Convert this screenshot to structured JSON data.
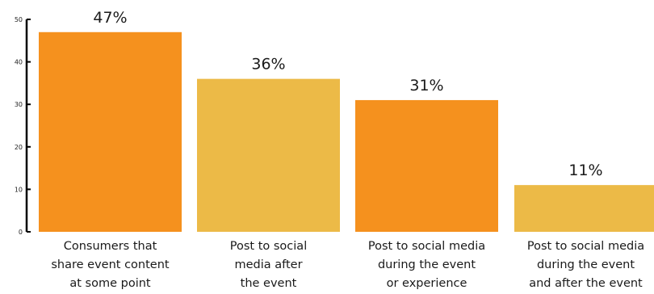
{
  "chart_data": {
    "type": "bar",
    "categories": [
      [
        "Consumers that",
        "share event content",
        "at some point"
      ],
      [
        "Post to social",
        "media after",
        "the event"
      ],
      [
        "Post to social media",
        "during the event",
        "or experience"
      ],
      [
        "Post to social media",
        "during the event",
        "and after the event"
      ]
    ],
    "values": [
      47,
      36,
      31,
      11
    ],
    "data_labels": [
      "47%",
      "36%",
      "31%",
      "11%"
    ],
    "bar_colors": [
      "#F5911E",
      "#ECBA47",
      "#F5911E",
      "#ECBA47"
    ],
    "ylim": [
      0,
      50
    ],
    "yticks": [
      0,
      10,
      20,
      30,
      40,
      50
    ],
    "title": "",
    "xlabel": "",
    "ylabel": "",
    "grid": false,
    "legend": "none"
  }
}
